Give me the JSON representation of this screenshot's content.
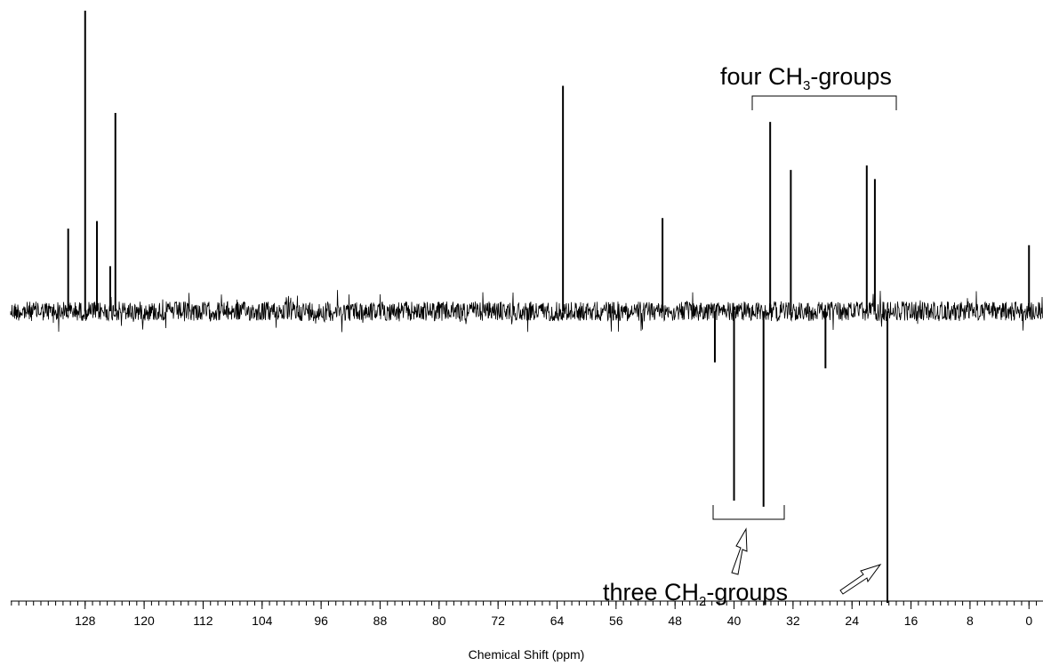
{
  "chart_data": {
    "type": "stick",
    "x_label": "Chemical Shift (ppm)",
    "x": [
      130.3,
      128.0,
      126.4,
      124.6,
      123.9,
      63.2,
      49.7,
      42.6,
      40.0,
      36.0,
      35.1,
      32.3,
      27.6,
      22.0,
      20.9,
      19.2,
      0.0
    ],
    "values": [
      27.5,
      100,
      30,
      15,
      66,
      75,
      31,
      -17,
      -63,
      -65,
      63,
      47,
      -19,
      48.5,
      44,
      -97,
      22
    ],
    "color": "#000000",
    "xlim": [
      138.1,
      -1.9
    ],
    "ylim": [
      -97,
      100
    ],
    "xticks": [
      128,
      120,
      112,
      104,
      96,
      88,
      80,
      72,
      64,
      56,
      48,
      40,
      32,
      24,
      16,
      8,
      0
    ],
    "xminor_step": 1,
    "annotations": [
      {
        "parts": [
          "four CH",
          "3",
          "-groups"
        ]
      },
      {
        "parts": [
          "three CH",
          "2",
          "-groups"
        ]
      }
    ]
  }
}
